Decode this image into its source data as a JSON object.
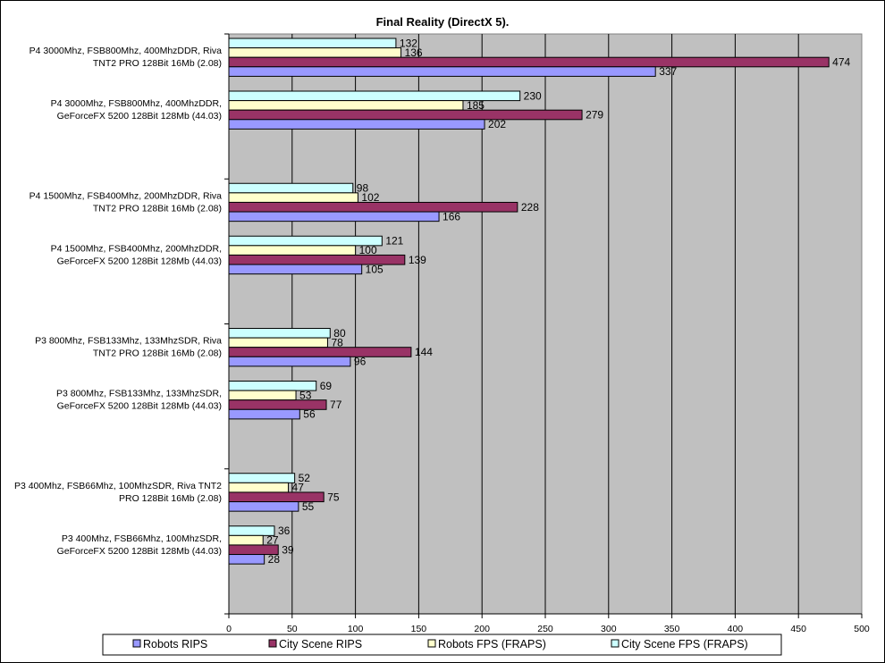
{
  "chart_data": {
    "type": "bar",
    "orientation": "horizontal",
    "title": "Final Reality (DirectX 5).",
    "xlim": [
      0,
      500
    ],
    "x_ticks": [
      "0",
      "50",
      "100",
      "150",
      "200",
      "250",
      "300",
      "350",
      "400",
      "450",
      "500"
    ],
    "grid": true,
    "legend_position": "bottom",
    "groups": [
      {
        "categories": [
          {
            "lines": [
              "P4 3000Mhz, FSB800Mhz, 400MhzDDR, Riva",
              "TNT2 PRO 128Bit 16Mb (2.08)"
            ],
            "values": [
              337,
              474,
              136,
              132
            ]
          },
          {
            "lines": [
              "P4 3000Mhz, FSB800Mhz, 400MhzDDR,",
              "GeForceFX 5200 128Bit 128Mb (44.03)"
            ],
            "values": [
              202,
              279,
              185,
              230
            ]
          }
        ]
      },
      {
        "categories": [
          {
            "lines": [
              "P4 1500Mhz, FSB400Mhz, 200MhzDDR, Riva",
              "TNT2 PRO 128Bit 16Mb (2.08)"
            ],
            "values": [
              166,
              228,
              102,
              98
            ]
          },
          {
            "lines": [
              "P4 1500Mhz, FSB400Mhz, 200MhzDDR,",
              "GeForceFX 5200 128Bit 128Mb (44.03)"
            ],
            "values": [
              105,
              139,
              100,
              121
            ]
          }
        ]
      },
      {
        "categories": [
          {
            "lines": [
              "P3 800Mhz, FSB133Mhz, 133MhzSDR, Riva",
              "TNT2 PRO 128Bit 16Mb (2.08)"
            ],
            "values": [
              96,
              144,
              78,
              80
            ]
          },
          {
            "lines": [
              "P3 800Mhz, FSB133Mhz, 133MhzSDR,",
              "GeForceFX 5200 128Bit 128Mb (44.03)"
            ],
            "values": [
              56,
              77,
              53,
              69
            ]
          }
        ]
      },
      {
        "categories": [
          {
            "lines": [
              "P3 400Mhz, FSB66Mhz, 100MhzSDR, Riva TNT2",
              "PRO 128Bit 16Mb (2.08)"
            ],
            "values": [
              55,
              75,
              47,
              52
            ]
          },
          {
            "lines": [
              "P3 400Mhz, FSB66Mhz, 100MhzSDR,",
              "GeForceFX 5200 128Bit 128Mb (44.03)"
            ],
            "values": [
              28,
              39,
              27,
              36
            ]
          }
        ]
      }
    ],
    "series": [
      {
        "name": "Robots RIPS",
        "color": "#9999ff"
      },
      {
        "name": "City Scene RIPS",
        "color": "#993366"
      },
      {
        "name": "Robots FPS (FRAPS)",
        "color": "#ffffcc"
      },
      {
        "name": "City Scene FPS (FRAPS)",
        "color": "#ccffff"
      }
    ],
    "plot_background": "#c0c0c0"
  }
}
